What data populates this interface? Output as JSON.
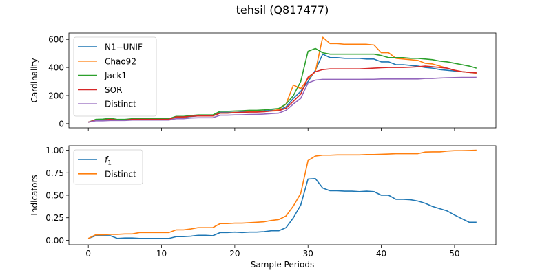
{
  "figure": {
    "title": "tehsil (Q817477)"
  },
  "chart_data": [
    {
      "type": "line",
      "ylabel": "Cardinality",
      "xlabel": "",
      "xlim": [
        -2.65,
        55.65
      ],
      "ylim": [
        -30,
        645
      ],
      "xticks": [
        0,
        10,
        20,
        30,
        40,
        50
      ],
      "yticks": [
        0,
        200,
        400,
        600
      ],
      "ytick_labels": [
        "0",
        "200",
        "400",
        "600"
      ],
      "legend_position": "upper-left",
      "x": [
        0,
        1,
        2,
        3,
        4,
        5,
        6,
        7,
        8,
        9,
        10,
        11,
        12,
        13,
        14,
        15,
        16,
        17,
        18,
        19,
        20,
        21,
        22,
        23,
        24,
        25,
        26,
        27,
        28,
        29,
        30,
        31,
        32,
        33,
        34,
        35,
        36,
        37,
        38,
        39,
        40,
        41,
        42,
        43,
        44,
        45,
        46,
        47,
        48,
        49,
        50,
        51,
        52,
        53
      ],
      "series": [
        {
          "name": "N1−UNIF",
          "color": "#1f77b4",
          "values": [
            10,
            25,
            25,
            30,
            25,
            25,
            30,
            30,
            30,
            30,
            30,
            30,
            45,
            45,
            50,
            55,
            55,
            55,
            80,
            80,
            80,
            85,
            85,
            85,
            90,
            95,
            95,
            120,
            180,
            230,
            300,
            380,
            495,
            470,
            470,
            465,
            465,
            465,
            460,
            460,
            440,
            440,
            420,
            420,
            415,
            410,
            400,
            395,
            385,
            380,
            375,
            370,
            365,
            360
          ]
        },
        {
          "name": "Chao92",
          "color": "#ff7f0e",
          "values": [
            10,
            25,
            25,
            30,
            25,
            25,
            30,
            30,
            30,
            30,
            30,
            30,
            45,
            45,
            55,
            55,
            55,
            55,
            75,
            75,
            80,
            80,
            85,
            85,
            85,
            90,
            100,
            140,
            275,
            250,
            320,
            370,
            615,
            570,
            570,
            565,
            565,
            565,
            565,
            560,
            505,
            505,
            465,
            460,
            455,
            450,
            430,
            425,
            410,
            395,
            380,
            370,
            365,
            360
          ]
        },
        {
          "name": "Jack1",
          "color": "#2ca02c",
          "values": [
            10,
            30,
            32,
            38,
            30,
            30,
            35,
            35,
            35,
            35,
            35,
            35,
            52,
            52,
            57,
            62,
            62,
            62,
            88,
            88,
            90,
            92,
            95,
            95,
            98,
            103,
            108,
            140,
            200,
            300,
            515,
            535,
            505,
            495,
            495,
            495,
            495,
            495,
            495,
            495,
            485,
            470,
            470,
            470,
            465,
            465,
            460,
            455,
            445,
            440,
            430,
            420,
            410,
            395
          ]
        },
        {
          "name": "SOR",
          "color": "#d62728",
          "values": [
            10,
            25,
            25,
            30,
            25,
            25,
            30,
            30,
            30,
            30,
            30,
            30,
            48,
            48,
            52,
            55,
            55,
            55,
            75,
            75,
            78,
            80,
            82,
            82,
            85,
            90,
            92,
            110,
            160,
            210,
            330,
            370,
            385,
            390,
            390,
            390,
            390,
            390,
            392,
            395,
            398,
            400,
            400,
            400,
            402,
            405,
            410,
            405,
            400,
            395,
            380,
            370,
            365,
            362
          ]
        },
        {
          "name": "Distinct",
          "color": "#9467bd",
          "values": [
            10,
            20,
            20,
            22,
            22,
            22,
            25,
            25,
            25,
            25,
            25,
            25,
            35,
            35,
            40,
            42,
            42,
            42,
            60,
            60,
            62,
            63,
            65,
            66,
            68,
            72,
            75,
            95,
            140,
            180,
            290,
            310,
            315,
            315,
            315,
            315,
            315,
            315,
            316,
            316,
            318,
            318,
            318,
            318,
            318,
            318,
            322,
            322,
            325,
            327,
            328,
            329,
            329,
            330
          ]
        }
      ]
    },
    {
      "type": "line",
      "ylabel": "Indicators",
      "xlabel": "Sample Periods",
      "xlim": [
        -2.65,
        55.65
      ],
      "ylim": [
        -0.05,
        1.05
      ],
      "xticks": [
        0,
        10,
        20,
        30,
        40,
        50
      ],
      "yticks": [
        0,
        0.25,
        0.5,
        0.75,
        1.0
      ],
      "ytick_labels": [
        "0.00",
        "0.25",
        "0.50",
        "0.75",
        "1.00"
      ],
      "legend_position": "upper-left",
      "x": [
        0,
        1,
        2,
        3,
        4,
        5,
        6,
        7,
        8,
        9,
        10,
        11,
        12,
        13,
        14,
        15,
        16,
        17,
        18,
        19,
        20,
        21,
        22,
        23,
        24,
        25,
        26,
        27,
        28,
        29,
        30,
        31,
        32,
        33,
        34,
        35,
        36,
        37,
        38,
        39,
        40,
        41,
        42,
        43,
        44,
        45,
        46,
        47,
        48,
        49,
        50,
        51,
        52,
        53
      ],
      "series": [
        {
          "name": "f1",
          "color": "#1f77b4",
          "values": [
            0.02,
            0.05,
            0.05,
            0.05,
            0.02,
            0.025,
            0.025,
            0.02,
            0.02,
            0.02,
            0.02,
            0.02,
            0.04,
            0.04,
            0.045,
            0.055,
            0.055,
            0.05,
            0.085,
            0.085,
            0.09,
            0.085,
            0.09,
            0.09,
            0.095,
            0.105,
            0.105,
            0.14,
            0.25,
            0.39,
            0.68,
            0.685,
            0.58,
            0.55,
            0.55,
            0.545,
            0.545,
            0.54,
            0.545,
            0.54,
            0.5,
            0.5,
            0.455,
            0.455,
            0.45,
            0.435,
            0.41,
            0.375,
            0.35,
            0.325,
            0.28,
            0.24,
            0.2,
            0.2
          ]
        },
        {
          "name": "Distinct",
          "color": "#ff7f0e",
          "values": [
            0.02,
            0.06,
            0.06,
            0.065,
            0.065,
            0.07,
            0.07,
            0.085,
            0.085,
            0.085,
            0.085,
            0.085,
            0.115,
            0.115,
            0.125,
            0.14,
            0.14,
            0.14,
            0.185,
            0.185,
            0.19,
            0.19,
            0.195,
            0.2,
            0.205,
            0.22,
            0.23,
            0.27,
            0.38,
            0.52,
            0.885,
            0.935,
            0.945,
            0.945,
            0.948,
            0.948,
            0.948,
            0.948,
            0.952,
            0.952,
            0.955,
            0.958,
            0.962,
            0.962,
            0.962,
            0.962,
            0.98,
            0.982,
            0.982,
            0.99,
            0.995,
            0.995,
            0.997,
            1.0
          ]
        }
      ]
    }
  ]
}
